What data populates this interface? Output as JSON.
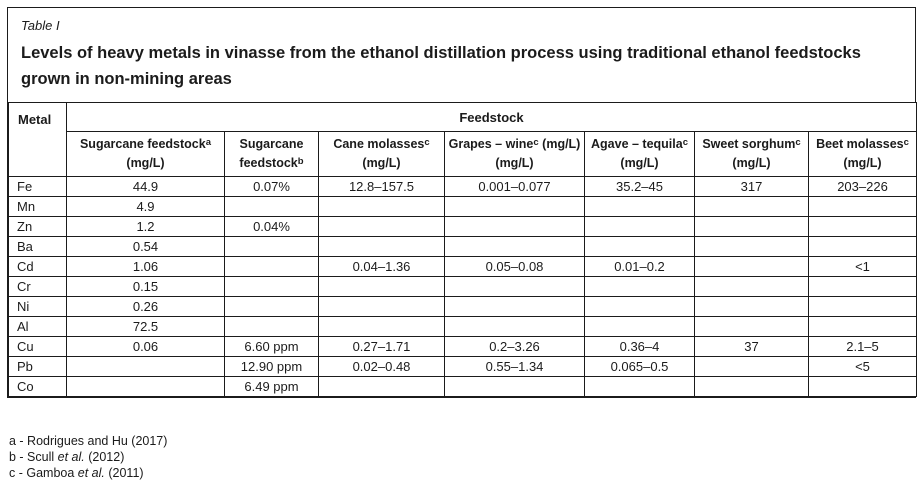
{
  "caption": {
    "label": "Table I",
    "title": "Levels of heavy metals in vinasse from the ethanol distillation process using traditional ethanol feedstocks grown in non-mining areas"
  },
  "table": {
    "corner_header": "Metal",
    "group_header": "Feedstock",
    "columns": [
      {
        "lines": [
          [
            {
              "t": "Sugarcane feedstock"
            },
            {
              "t": "a",
              "sup": true
            }
          ],
          [
            {
              "t": "(mg/L)"
            }
          ]
        ]
      },
      {
        "lines": [
          [
            {
              "t": "Sugarcane"
            }
          ],
          [
            {
              "t": "feedstock"
            },
            {
              "t": "b",
              "sup": true
            }
          ]
        ]
      },
      {
        "lines": [
          [
            {
              "t": "Cane molasses"
            },
            {
              "t": "c",
              "sup": true
            }
          ],
          [
            {
              "t": "(mg/L)"
            }
          ]
        ]
      },
      {
        "lines": [
          [
            {
              "t": "Grapes – wine"
            },
            {
              "t": "c",
              "sup": true
            },
            {
              "t": " (mg/L)"
            }
          ],
          [
            {
              "t": "(mg/L)"
            }
          ]
        ]
      },
      {
        "lines": [
          [
            {
              "t": "Agave – tequila"
            },
            {
              "t": "c",
              "sup": true
            }
          ],
          [
            {
              "t": "(mg/L)"
            }
          ]
        ]
      },
      {
        "lines": [
          [
            {
              "t": "Sweet sorghum"
            },
            {
              "t": "c",
              "sup": true
            }
          ],
          [
            {
              "t": "(mg/L)"
            }
          ]
        ]
      },
      {
        "lines": [
          [
            {
              "t": "Beet molasses"
            },
            {
              "t": "c",
              "sup": true
            }
          ],
          [
            {
              "t": "(mg/L)"
            }
          ]
        ]
      }
    ],
    "rows": [
      {
        "metal": "Fe",
        "values": [
          "44.9",
          "0.07%",
          "12.8–157.5",
          "0.001–0.077",
          "35.2–45",
          "317",
          "203–226"
        ]
      },
      {
        "metal": "Mn",
        "values": [
          "4.9",
          "",
          "",
          "",
          "",
          "",
          ""
        ]
      },
      {
        "metal": "Zn",
        "values": [
          "1.2",
          "0.04%",
          "",
          "",
          "",
          "",
          ""
        ]
      },
      {
        "metal": "Ba",
        "values": [
          "0.54",
          "",
          "",
          "",
          "",
          "",
          ""
        ]
      },
      {
        "metal": "Cd",
        "values": [
          "1.06",
          "",
          "0.04–1.36",
          "0.05–0.08",
          "0.01–0.2",
          "",
          "<1"
        ]
      },
      {
        "metal": "Cr",
        "values": [
          "0.15",
          "",
          "",
          "",
          "",
          "",
          ""
        ]
      },
      {
        "metal": "Ni",
        "values": [
          "0.26",
          "",
          "",
          "",
          "",
          "",
          ""
        ]
      },
      {
        "metal": "Al",
        "values": [
          "72.5",
          "",
          "",
          "",
          "",
          "",
          ""
        ]
      },
      {
        "metal": "Cu",
        "values": [
          "0.06",
          "6.60 ppm",
          "0.27–1.71",
          "0.2–3.26",
          "0.36–4",
          "37",
          "2.1–5"
        ]
      },
      {
        "metal": "Pb",
        "values": [
          "",
          "12.90 ppm",
          "0.02–0.48",
          "0.55–1.34",
          "0.065–0.5",
          "",
          "<5"
        ]
      },
      {
        "metal": "Co",
        "values": [
          "",
          "6.49 ppm",
          "",
          "",
          "",
          "",
          ""
        ]
      }
    ]
  },
  "footnotes": [
    [
      {
        "t": "a - Rodrigues and Hu (2017)"
      }
    ],
    [
      {
        "t": "b - Scull "
      },
      {
        "t": "et al.",
        "i": true
      },
      {
        "t": " (2012)"
      }
    ],
    [
      {
        "t": "c - Gamboa "
      },
      {
        "t": "et al.",
        "i": true
      },
      {
        "t": " (2011)"
      }
    ]
  ]
}
